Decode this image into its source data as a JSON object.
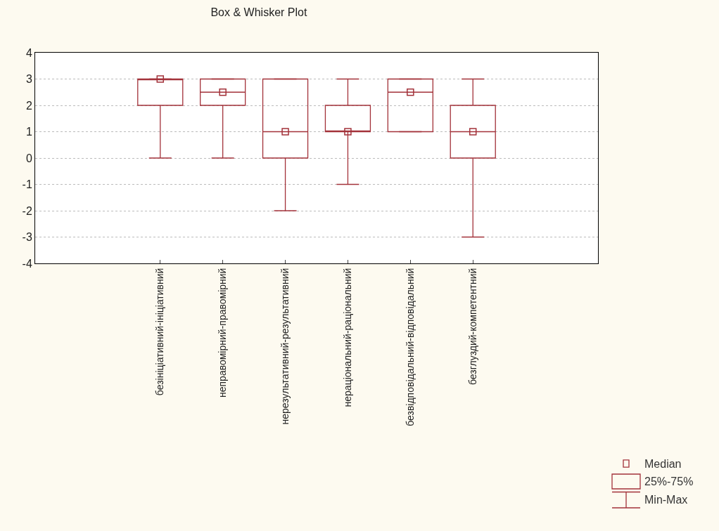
{
  "chart_data": {
    "type": "box",
    "title": "Box & Whisker Plot",
    "categories": [
      null,
      "безініціативний-ініціативний",
      "неправомірний-правомірний",
      "нерезультативний-результативний",
      "нераціональний-раціональний",
      "безвідповідальний-відповідальний",
      "безглуздий-компетентний",
      null
    ],
    "boxes": [
      null,
      {
        "low": 0,
        "q1": 2,
        "median": 3,
        "q3": 3,
        "high": 3
      },
      {
        "low": 0,
        "q1": 2,
        "median": 2.5,
        "q3": 3,
        "high": 3
      },
      {
        "low": -2,
        "q1": 0,
        "median": 1,
        "q3": 3,
        "high": 3
      },
      {
        "low": -1,
        "q1": 1,
        "median": 1,
        "q3": 2,
        "high": 3
      },
      {
        "low": 1,
        "q1": 1,
        "median": 2.5,
        "q3": 3,
        "high": 3
      },
      {
        "low": -3,
        "q1": 0,
        "median": 1,
        "q3": 2,
        "high": 3
      },
      null
    ],
    "color": "#a3323a",
    "series": [
      {
        "type": "scatter",
        "color": "#a3323a",
        "marker": "square",
        "values": [
          null,
          3,
          2.5,
          1,
          1,
          2.5,
          1,
          null
        ]
      }
    ],
    "ylim": [
      -4,
      4
    ],
    "yticks": [
      -4,
      -3,
      -2,
      -1,
      0,
      1,
      2,
      3,
      4
    ],
    "grid": "y",
    "annotations": [
      "Median",
      "25%-75%",
      "Min-Max"
    ]
  }
}
